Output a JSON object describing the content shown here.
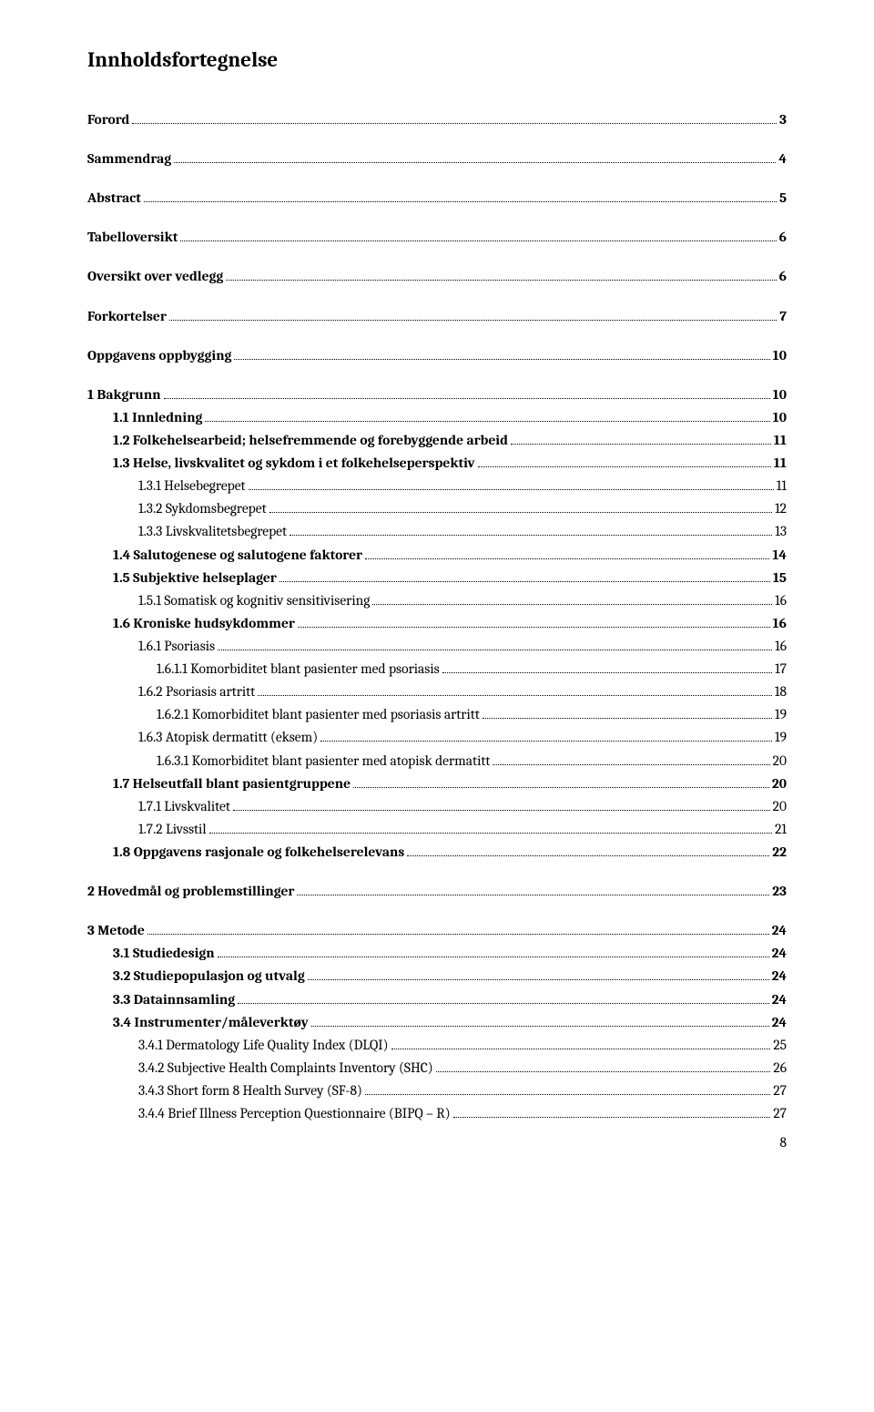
{
  "title": "Innholdsfortegnelse",
  "footer_page": "8",
  "toc": [
    {
      "label": "Forord",
      "page": "3",
      "level": 0,
      "bold": true,
      "gap_after": true
    },
    {
      "label": "Sammendrag",
      "page": "4",
      "level": 0,
      "bold": true,
      "gap_after": true
    },
    {
      "label": "Abstract",
      "page": "5",
      "level": 0,
      "bold": true,
      "gap_after": true
    },
    {
      "label": "Tabelloversikt",
      "page": "6",
      "level": 0,
      "bold": true,
      "gap_after": true
    },
    {
      "label": "Oversikt over vedlegg",
      "page": "6",
      "level": 0,
      "bold": true,
      "gap_after": true
    },
    {
      "label": "Forkortelser",
      "page": "7",
      "level": 0,
      "bold": true,
      "gap_after": true
    },
    {
      "label": "Oppgavens oppbygging",
      "page": "10",
      "level": 0,
      "bold": true,
      "gap_after": true
    },
    {
      "label": "1   Bakgrunn",
      "page": "10",
      "level": 0,
      "bold": true
    },
    {
      "label": "1.1   Innledning",
      "page": "10",
      "level": 1,
      "bold": true
    },
    {
      "label": "1.2   Folkehelsearbeid; helsefremmende og forebyggende arbeid",
      "page": "11",
      "level": 1,
      "bold": true
    },
    {
      "label": "1.3   Helse, livskvalitet og sykdom i et folkehelseperspektiv",
      "page": "11",
      "level": 1,
      "bold": true
    },
    {
      "label": "1.3.1   Helsebegrepet",
      "page": "11",
      "level": 2
    },
    {
      "label": "1.3.2   Sykdomsbegrepet",
      "page": "12",
      "level": 2
    },
    {
      "label": "1.3.3   Livskvalitetsbegrepet",
      "page": "13",
      "level": 2
    },
    {
      "label": "1.4   Salutogenese og salutogene faktorer",
      "page": "14",
      "level": 1,
      "bold": true
    },
    {
      "label": "1.5   Subjektive helseplager",
      "page": "15",
      "level": 1,
      "bold": true
    },
    {
      "label": "1.5.1   Somatisk og kognitiv sensitivisering",
      "page": "16",
      "level": 2
    },
    {
      "label": "1.6   Kroniske hudsykdommer",
      "page": "16",
      "level": 1,
      "bold": true
    },
    {
      "label": "1.6.1   Psoriasis",
      "page": "16",
      "level": 2
    },
    {
      "label": "1.6.1.1   Komorbiditet blant pasienter med psoriasis",
      "page": "17",
      "level": 3
    },
    {
      "label": "1.6.2   Psoriasis artritt",
      "page": "18",
      "level": 2
    },
    {
      "label": "1.6.2.1   Komorbiditet blant pasienter med psoriasis artritt",
      "page": "19",
      "level": 3
    },
    {
      "label": "1.6.3   Atopisk dermatitt (eksem)",
      "page": "19",
      "level": 2
    },
    {
      "label": "1.6.3.1   Komorbiditet blant pasienter med atopisk dermatitt",
      "page": "20",
      "level": 3
    },
    {
      "label": "1.7   Helseutfall blant pasientgruppene",
      "page": "20",
      "level": 1,
      "bold": true
    },
    {
      "label": "1.7.1   Livskvalitet",
      "page": "20",
      "level": 2
    },
    {
      "label": "1.7.2   Livsstil",
      "page": "21",
      "level": 2
    },
    {
      "label": "1.8   Oppgavens rasjonale og folkehelserelevans",
      "page": "22",
      "level": 1,
      "bold": true,
      "gap_after": true
    },
    {
      "label": "2   Hovedmål og problemstillinger",
      "page": "23",
      "level": 0,
      "bold": true,
      "gap_after": true
    },
    {
      "label": "3   Metode",
      "page": "24",
      "level": 0,
      "bold": true
    },
    {
      "label": "3.1   Studiedesign",
      "page": "24",
      "level": 1,
      "bold": true
    },
    {
      "label": "3.2   Studiepopulasjon og utvalg",
      "page": "24",
      "level": 1,
      "bold": true
    },
    {
      "label": "3.3   Datainnsamling",
      "page": "24",
      "level": 1,
      "bold": true
    },
    {
      "label": "3.4   Instrumenter/måleverktøy",
      "page": "24",
      "level": 1,
      "bold": true
    },
    {
      "label": "3.4.1   Dermatology Life Quality Index (DLQI)",
      "page": "25",
      "level": 2
    },
    {
      "label": "3.4.2   Subjective Health Complaints Inventory (SHC)",
      "page": "26",
      "level": 2
    },
    {
      "label": "3.4.3   Short form 8 Health Survey (SF-8)",
      "page": "27",
      "level": 2
    },
    {
      "label": "3.4.4   Brief Illness Perception Questionnaire (BIPQ – R)",
      "page": "27",
      "level": 2
    }
  ]
}
